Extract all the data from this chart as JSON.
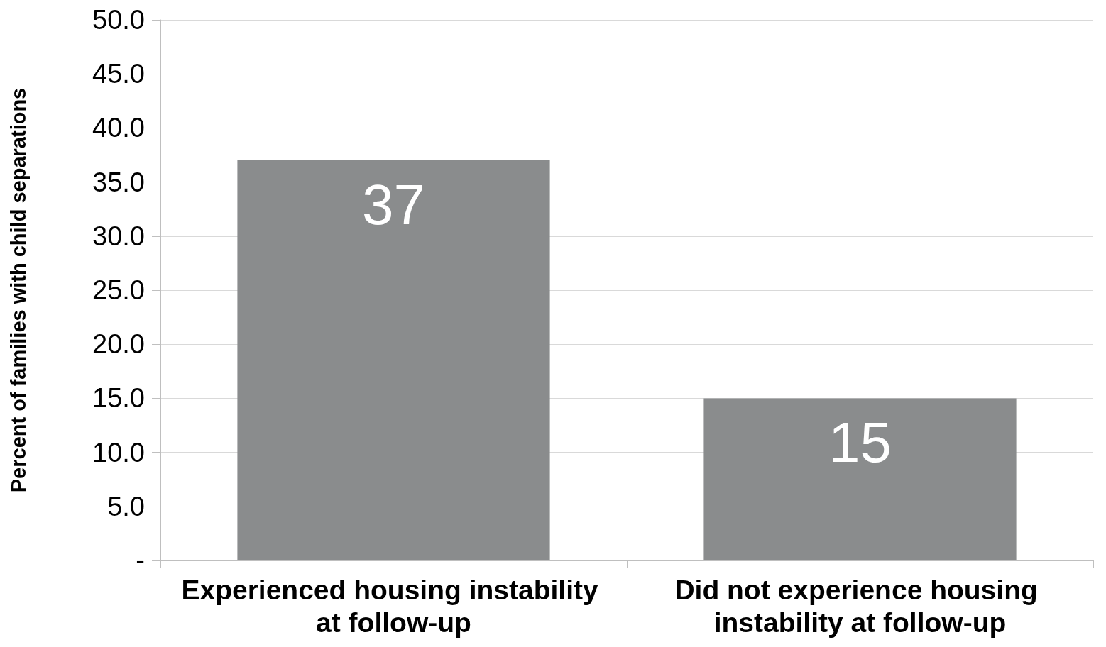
{
  "chart_data": {
    "type": "bar",
    "ylabel": "Percent of families with child separations",
    "categories": [
      "Experienced housing instability at follow-up",
      "Did not experience housing instability at follow-up"
    ],
    "values": [
      37,
      15
    ],
    "color": "#8a8c8d",
    "data_labels": true,
    "grid": "y",
    "ylim": [
      0,
      50
    ],
    "yticks": [
      {
        "value": 0,
        "label": "-"
      },
      {
        "value": 5,
        "label": "5.0"
      },
      {
        "value": 10,
        "label": "10.0"
      },
      {
        "value": 15,
        "label": "15.0"
      },
      {
        "value": 20,
        "label": "20.0"
      },
      {
        "value": 25,
        "label": "25.0"
      },
      {
        "value": 30,
        "label": "30.0"
      },
      {
        "value": 35,
        "label": "35.0"
      },
      {
        "value": 40,
        "label": "40.0"
      },
      {
        "value": 45,
        "label": "45.0"
      },
      {
        "value": 50,
        "label": "50.0"
      }
    ]
  }
}
